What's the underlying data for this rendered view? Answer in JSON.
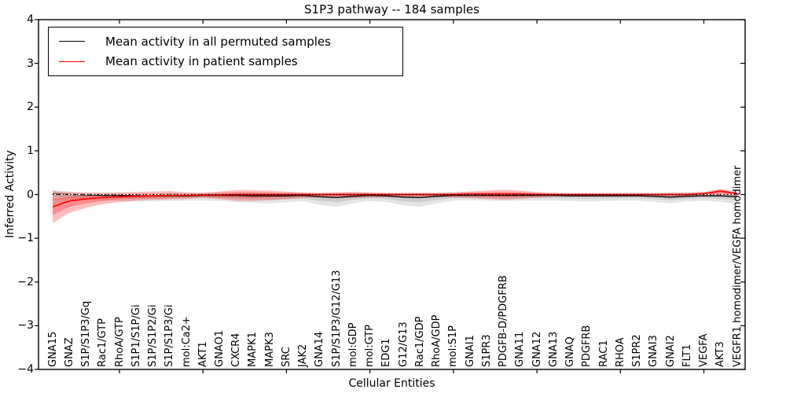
{
  "chart_data": {
    "type": "line",
    "title": "S1P3 pathway -- 184 samples",
    "xlabel": "Cellular Entities",
    "ylabel": "Inferred Activity",
    "ylim": [
      -4,
      4
    ],
    "yticks": [
      4,
      3,
      2,
      1,
      0,
      -1,
      -2,
      -3,
      -4
    ],
    "grid": false,
    "legend_position": "upper-left",
    "zero_reference_line": {
      "style": "black-dotted over white-dashed",
      "y": 0
    },
    "categories": [
      "GNA15",
      "GNAZ",
      "S1P/S1P3/Gq",
      "Rac1/GTP",
      "RhoA/GTP",
      "S1P1/S1P/Gi",
      "S1P/S1P2/Gi",
      "S1P/S1P3/Gi",
      "mol:Ca2+",
      "AKT1",
      "GNAO1",
      "CXCR4",
      "MAPK1",
      "MAPK3",
      "SRC",
      "JAK2",
      "GNA14",
      "S1P/S1P3/G12/G13",
      "mol:GDP",
      "mol:GTP",
      "EDG1",
      "G12/G13",
      "Rac1/GDP",
      "RhoA/GDP",
      "mol:S1P",
      "GNAI1",
      "S1PR3",
      "PDGFB-D/PDGFRB",
      "GNA11",
      "GNA12",
      "GNA13",
      "GNAQ",
      "PDGFRB",
      "RAC1",
      "RHOA",
      "S1PR2",
      "GNAI3",
      "GNAI2",
      "FLT1",
      "VEGFA",
      "AKT3",
      "VEGFR1 homodimer/VEGFA homodimer"
    ],
    "legend": [
      {
        "label": "Mean activity in all permuted samples",
        "color": "#000000"
      },
      {
        "label": "Mean activity in patient samples",
        "color": "#ff0000"
      }
    ],
    "series": [
      {
        "name": "Mean activity in all permuted samples",
        "color": "#000000",
        "band_color": "#bbbbbb",
        "values": [
          0.01,
          0.0,
          -0.01,
          -0.02,
          -0.02,
          -0.03,
          -0.03,
          -0.03,
          -0.03,
          -0.02,
          -0.02,
          -0.02,
          -0.03,
          -0.03,
          -0.03,
          -0.02,
          -0.05,
          -0.07,
          -0.04,
          -0.02,
          -0.03,
          -0.06,
          -0.07,
          -0.04,
          -0.02,
          -0.02,
          -0.02,
          -0.02,
          -0.02,
          -0.02,
          -0.02,
          -0.03,
          -0.03,
          -0.03,
          -0.03,
          -0.03,
          -0.04,
          -0.06,
          -0.04,
          -0.03,
          -0.03,
          -0.05
        ],
        "band_upper": [
          0.1,
          0.07,
          0.05,
          0.04,
          0.04,
          0.03,
          0.03,
          0.03,
          0.03,
          0.04,
          0.05,
          0.05,
          0.05,
          0.04,
          0.05,
          0.04,
          0.03,
          0.04,
          0.05,
          0.04,
          0.03,
          0.03,
          0.03,
          0.04,
          0.05,
          0.06,
          0.05,
          0.04,
          0.05,
          0.04,
          0.04,
          0.04,
          0.04,
          0.04,
          0.05,
          0.05,
          0.04,
          0.05,
          0.06,
          0.06,
          0.07,
          0.09
        ],
        "band_lower": [
          -0.13,
          -0.13,
          -0.13,
          -0.14,
          -0.15,
          -0.16,
          -0.16,
          -0.15,
          -0.14,
          -0.14,
          -0.15,
          -0.17,
          -0.19,
          -0.2,
          -0.18,
          -0.15,
          -0.24,
          -0.28,
          -0.2,
          -0.15,
          -0.17,
          -0.25,
          -0.28,
          -0.2,
          -0.14,
          -0.13,
          -0.14,
          -0.15,
          -0.14,
          -0.14,
          -0.14,
          -0.15,
          -0.16,
          -0.15,
          -0.14,
          -0.14,
          -0.17,
          -0.2,
          -0.16,
          -0.14,
          -0.17,
          -0.22
        ]
      },
      {
        "name": "Mean activity in patient samples",
        "color": "#ff0000",
        "band_color": "#ff0000",
        "values": [
          -0.28,
          -0.15,
          -0.1,
          -0.07,
          -0.05,
          -0.04,
          -0.03,
          -0.02,
          -0.02,
          -0.01,
          -0.01,
          0.0,
          0.0,
          0.0,
          0.0,
          0.0,
          0.0,
          0.0,
          0.0,
          0.0,
          0.0,
          0.0,
          0.0,
          0.0,
          0.0,
          0.01,
          0.01,
          0.01,
          0.01,
          0.0,
          0.0,
          0.0,
          0.0,
          0.0,
          0.0,
          0.0,
          0.0,
          0.0,
          0.0,
          0.02,
          0.08,
          0.02
        ],
        "band_upper": [
          0.08,
          0.05,
          0.04,
          0.04,
          0.05,
          0.06,
          0.07,
          0.08,
          0.05,
          0.04,
          0.07,
          0.1,
          0.1,
          0.09,
          0.07,
          0.05,
          0.04,
          0.05,
          0.06,
          0.05,
          0.04,
          0.04,
          0.04,
          0.04,
          0.05,
          0.07,
          0.09,
          0.11,
          0.09,
          0.06,
          0.04,
          0.03,
          0.03,
          0.03,
          0.03,
          0.03,
          0.03,
          0.04,
          0.04,
          0.06,
          0.13,
          0.05
        ],
        "band_lower": [
          -0.65,
          -0.42,
          -0.3,
          -0.22,
          -0.17,
          -0.14,
          -0.12,
          -0.11,
          -0.1,
          -0.07,
          -0.1,
          -0.14,
          -0.15,
          -0.13,
          -0.11,
          -0.08,
          -0.06,
          -0.07,
          -0.08,
          -0.07,
          -0.06,
          -0.06,
          -0.06,
          -0.06,
          -0.07,
          -0.08,
          -0.1,
          -0.12,
          -0.1,
          -0.07,
          -0.05,
          -0.04,
          -0.04,
          -0.04,
          -0.04,
          -0.04,
          -0.04,
          -0.05,
          -0.05,
          -0.03,
          -0.02,
          -0.03
        ]
      }
    ]
  }
}
